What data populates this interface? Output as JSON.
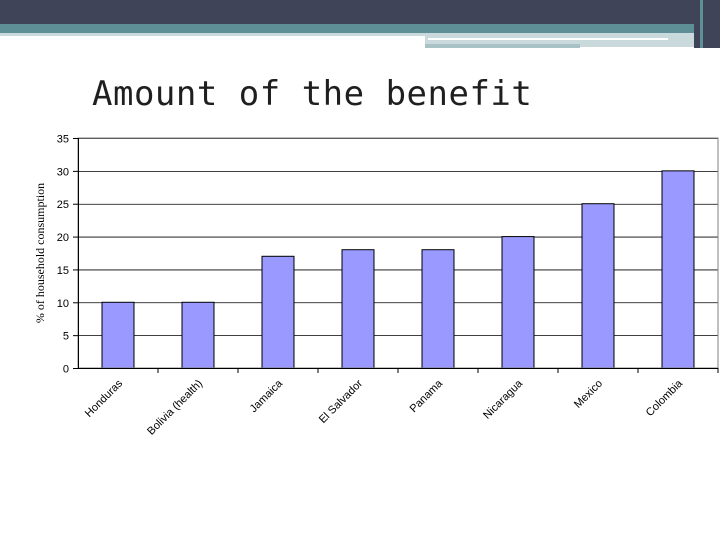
{
  "slide": {
    "title": "Amount of the benefit",
    "colors": {
      "bar_dark": "#404458",
      "bar_teal": "#5f8f96",
      "bar_light": "#c9d9dc"
    }
  },
  "chart_data": {
    "type": "bar",
    "title": "",
    "xlabel": "",
    "ylabel": "% of household consumption",
    "categories": [
      "Honduras",
      "Bolivia (health)",
      "Jamaica",
      "El Salvador",
      "Panama",
      "Nicaragua",
      "Mexico",
      "Colombia"
    ],
    "values": [
      10,
      10,
      17,
      18,
      18,
      20,
      25,
      30
    ],
    "ylim": [
      0,
      35
    ],
    "yticks": [
      0,
      5,
      10,
      15,
      20,
      25,
      30,
      35
    ],
    "grid": true,
    "legend": "none",
    "bar_color": "#9999ff",
    "bar_edge": "#000000",
    "grid_color": "#000000"
  }
}
